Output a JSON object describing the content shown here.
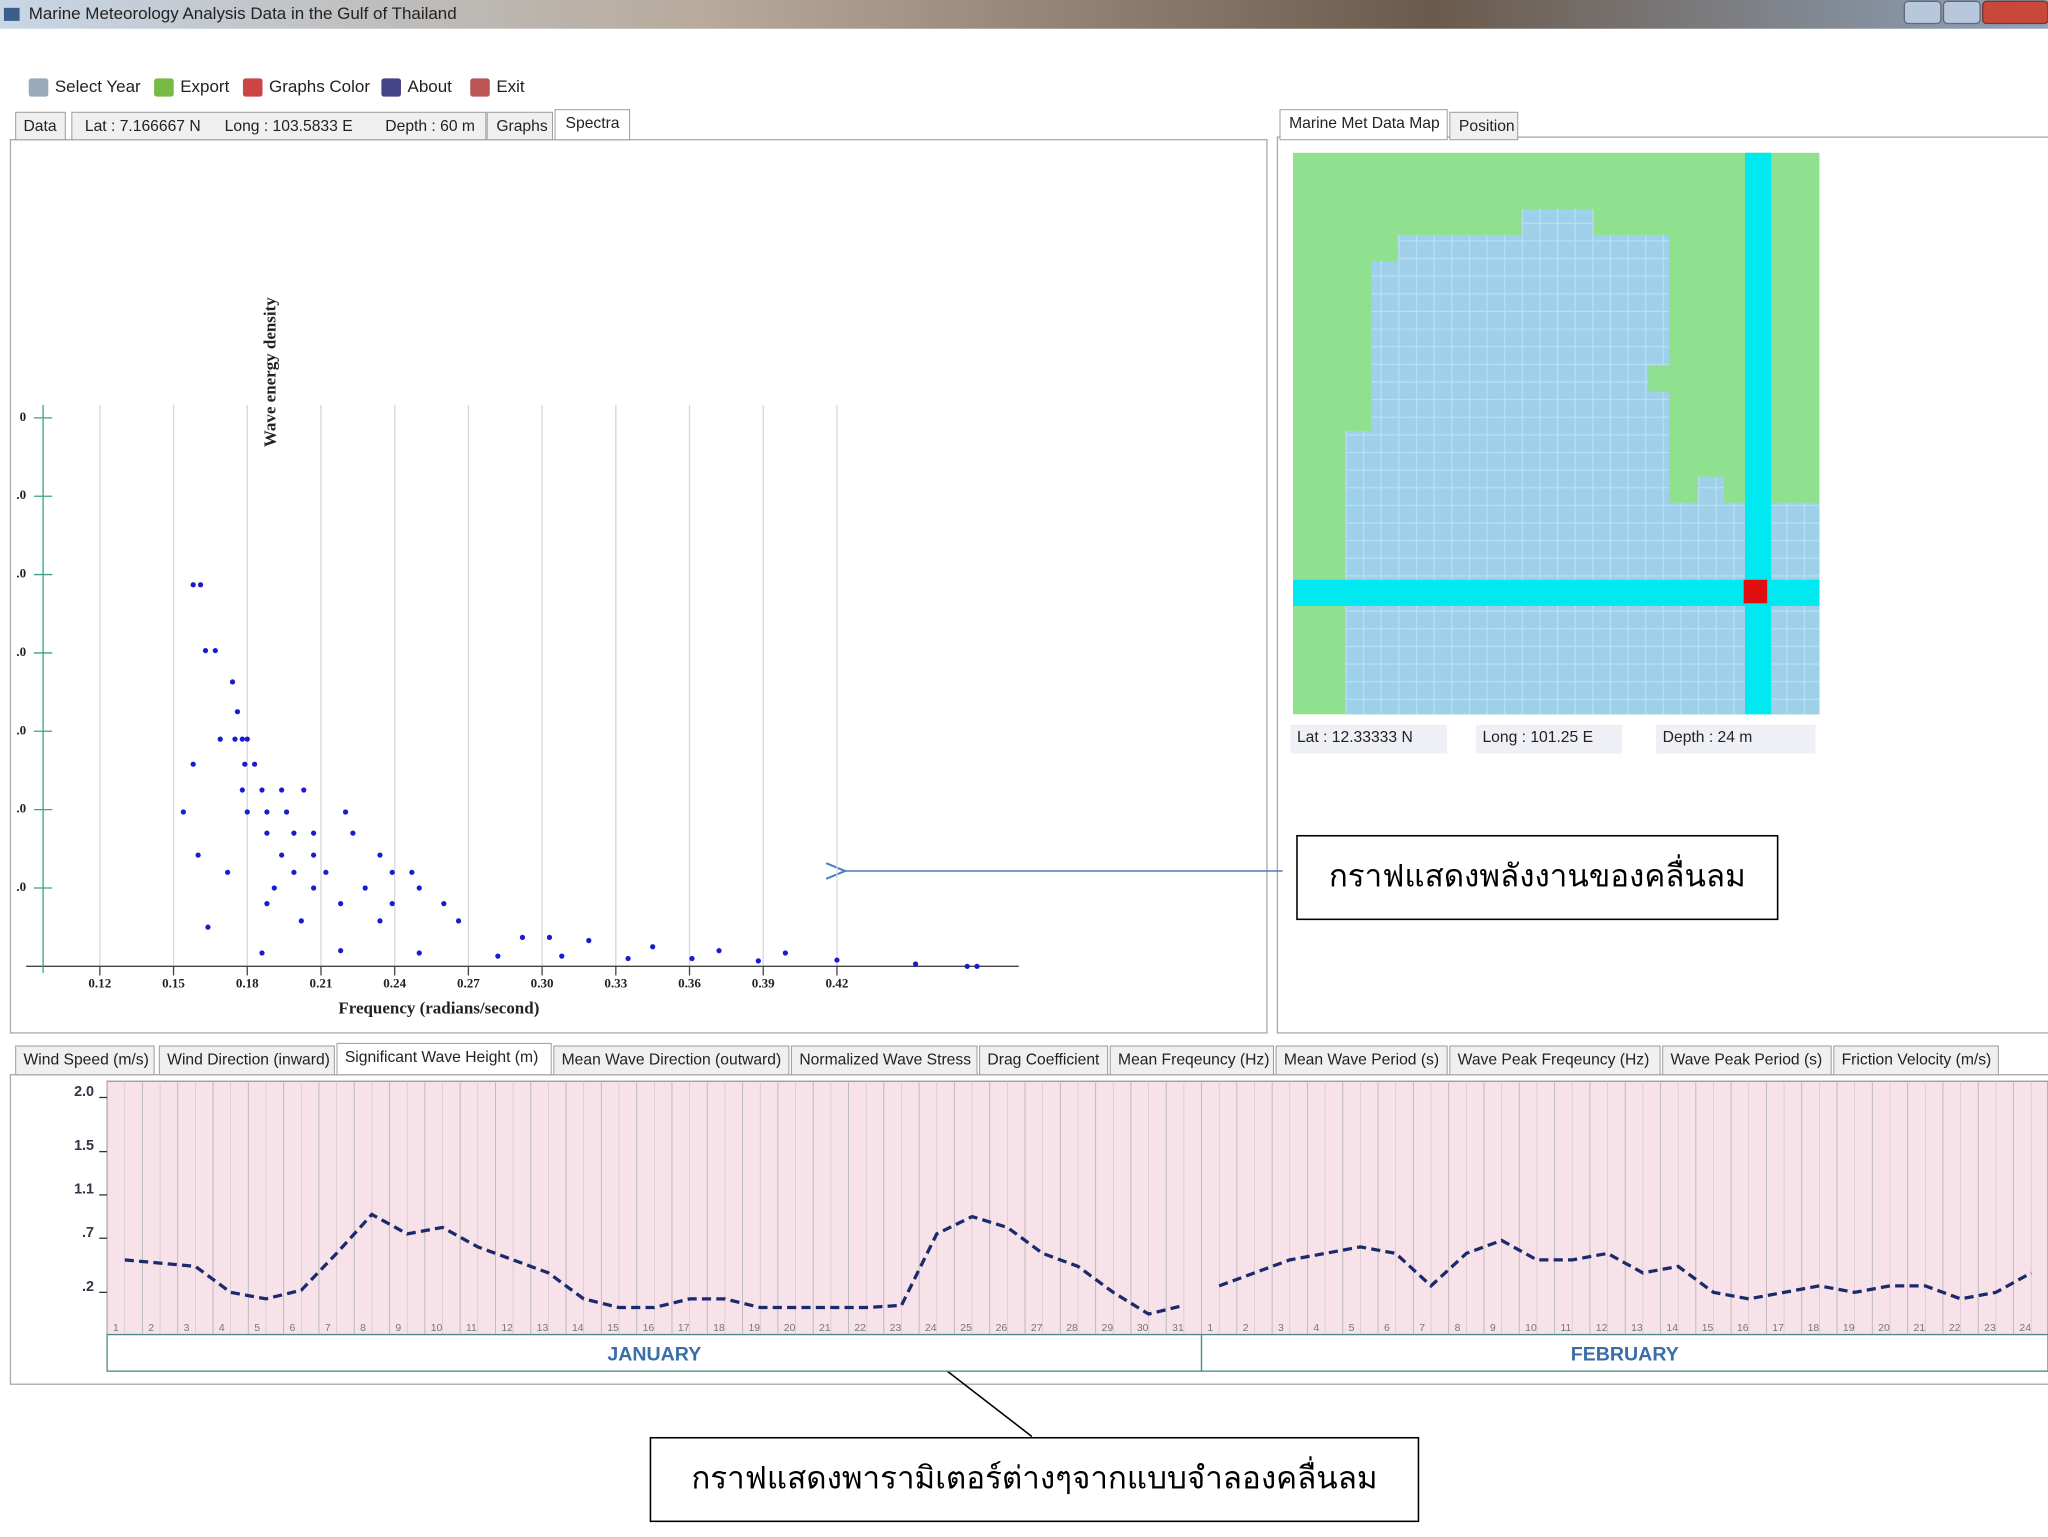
{
  "window": {
    "title": "Marine Meteorology Analysis Data in the Gulf of Thailand"
  },
  "toolbar": [
    "Select Year",
    "Export",
    "Graphs Color",
    "About",
    "Exit"
  ],
  "left_tabs": {
    "data": "Data",
    "lat": "Lat :  7.166667 N",
    "long": "Long :  103.5833 E",
    "depth": "Depth :  60 m",
    "graphs": "Graphs",
    "spectra": "Spectra"
  },
  "right_tabs": [
    "Marine Met Data Map",
    "Position"
  ],
  "map_position": {
    "lat": "Lat :  12.33333 N",
    "long": "Long :  101.25 E",
    "depth": "Depth :  24 m"
  },
  "spectra": {
    "type": "scatter",
    "y_label": "Wave energy density",
    "x_label": "Frequency (radians/second)",
    "color": "#1a1ad0",
    "xlim": [
      0.09,
      0.494
    ],
    "xticks": [
      0.12,
      0.15,
      0.18,
      0.21,
      0.24,
      0.27,
      {
        "value": 0.3,
        "label": "0.30"
      },
      0.33,
      0.36,
      0.39,
      0.42
    ],
    "ylim": [
      0,
      7
    ],
    "yticks": [
      {
        "value": 1,
        "label": ".0"
      },
      {
        "value": 2,
        "label": ".0"
      },
      {
        "value": 3,
        "label": ".0"
      },
      {
        "value": 4,
        "label": ".0"
      },
      {
        "value": 5,
        "label": ".0"
      },
      {
        "value": 6,
        "label": ".0"
      },
      {
        "value": 7,
        "label": "0"
      }
    ],
    "x": [
      0.158,
      0.161,
      0.163,
      0.167,
      0.174,
      0.176,
      0.175,
      0.169,
      0.178,
      0.18,
      0.158,
      0.179,
      0.183,
      0.178,
      0.186,
      0.194,
      0.203,
      0.154,
      0.18,
      0.188,
      0.196,
      0.22,
      0.188,
      0.199,
      0.207,
      0.223,
      0.16,
      0.194,
      0.207,
      0.234,
      0.172,
      0.199,
      0.212,
      0.239,
      0.247,
      0.191,
      0.207,
      0.228,
      0.25,
      0.188,
      0.218,
      0.239,
      0.26,
      0.164,
      0.202,
      0.234,
      0.266,
      0.292,
      0.303,
      0.319,
      0.345,
      0.372,
      0.399,
      0.42,
      0.452,
      0.473,
      0.477,
      0.186,
      0.218,
      0.25,
      0.282,
      0.308,
      0.335,
      0.361,
      0.388
    ],
    "y": [
      4.87,
      4.87,
      4.03,
      4.03,
      3.63,
      3.25,
      2.9,
      2.9,
      2.9,
      2.9,
      2.58,
      2.58,
      2.58,
      2.25,
      2.25,
      2.25,
      2.25,
      1.97,
      1.97,
      1.97,
      1.97,
      1.97,
      1.7,
      1.7,
      1.7,
      1.7,
      1.42,
      1.42,
      1.42,
      1.42,
      1.2,
      1.2,
      1.2,
      1.2,
      1.2,
      1.0,
      1.0,
      1.0,
      1.0,
      0.8,
      0.8,
      0.8,
      0.8,
      0.5,
      0.58,
      0.58,
      0.58,
      0.37,
      0.37,
      0.33,
      0.25,
      0.2,
      0.17,
      0.08,
      0.03,
      0,
      0,
      0.17,
      0.2,
      0.17,
      0.13,
      0.13,
      0.1,
      0.1,
      0.07
    ]
  },
  "parameter_tabs": [
    "Wind Speed (m/s)",
    "Wind Direction (inward)",
    "Significant Wave Height (m)",
    "Mean Wave Direction (outward)",
    "Normalized Wave Stress",
    "Drag Coefficient",
    "Mean Freqeuncy (Hz)",
    "Mean Wave Period (s)",
    "Wave Peak Freqeuncy (Hz)",
    "Wave Peak Period (s)",
    "Friction Velocity (m/s)"
  ],
  "wave_height": {
    "type": "line",
    "color": "#1a2a6c",
    "ylim": [
      -0.19,
      2.15
    ],
    "yticks": [
      {
        "value": 2,
        "label": "2.0"
      },
      1.5,
      1.1,
      {
        "value": 0.7,
        "label": ".7"
      },
      {
        "value": 0.2,
        "label": ".2"
      }
    ],
    "months": [
      {
        "name": "JANUARY",
        "days": [
          "1",
          "2",
          "3",
          "4",
          "5",
          "6",
          "7",
          "8",
          "9",
          "10",
          "11",
          "12",
          "13",
          "14",
          "15",
          "16",
          "17",
          "18",
          "19",
          "20",
          "21",
          "22",
          "23",
          "24",
          "25",
          "26",
          "27",
          "28",
          "29",
          "30",
          "31"
        ],
        "values": [
          0.5,
          0.47,
          0.44,
          0.2,
          0.14,
          0.22,
          0.56,
          0.92,
          0.74,
          0.8,
          0.62,
          0.5,
          0.38,
          0.14,
          0.06,
          0.06,
          0.14,
          0.14,
          0.06,
          0.06,
          0.06,
          0.06,
          0.08,
          0.74,
          0.9,
          0.8,
          0.56,
          0.44,
          0.2,
          0,
          0.08
        ]
      },
      {
        "name": "FEBRUARY",
        "days": [
          "1",
          "2",
          "3",
          "4",
          "5",
          "6",
          "7",
          "8",
          "9",
          "10",
          "11",
          "12",
          "13",
          "14",
          "15",
          "16",
          "17",
          "18",
          "19",
          "20",
          "21",
          "22",
          "23",
          "24"
        ],
        "values": [
          0.26,
          0.38,
          0.5,
          0.56,
          0.62,
          0.56,
          0.26,
          0.56,
          0.68,
          0.5,
          0.5,
          0.56,
          0.38,
          0.44,
          0.2,
          0.14,
          0.2,
          0.26,
          0.2,
          0.26,
          0.26,
          0.14,
          0.2,
          0.38
        ]
      }
    ]
  },
  "callouts": [
    "กราฟแสดงพลังงานของคลื่นลม",
    "กราฟแสดงพารามิเตอร์ต่างๆจากแบบจำลองคลื่นลม"
  ]
}
